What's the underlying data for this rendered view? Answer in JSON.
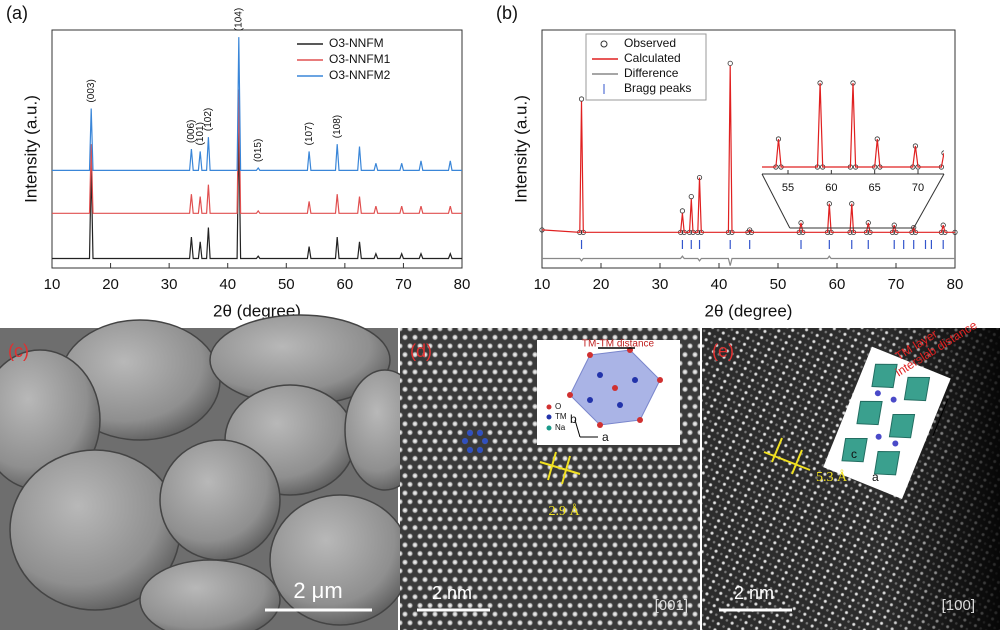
{
  "chart_data": [
    {
      "type": "line",
      "label": "(a)",
      "xlabel": "2θ (degree)",
      "ylabel": "Intensity (a.u.)",
      "xlim": [
        10,
        80
      ],
      "xticks": [
        10,
        20,
        30,
        40,
        50,
        60,
        70,
        80
      ],
      "ylim": [
        0,
        100
      ],
      "legend": "upper right",
      "x": [
        10,
        16.4,
        16.7,
        17.0,
        33.5,
        33.8,
        34.1,
        35.0,
        35.3,
        35.6,
        36.4,
        36.7,
        37.0,
        41.6,
        41.9,
        42.2,
        44.9,
        45.2,
        45.5,
        53.6,
        53.9,
        54.2,
        58.4,
        58.7,
        59.0,
        62.2,
        62.5,
        62.8,
        65.0,
        65.3,
        65.6,
        69.4,
        69.7,
        70.0,
        72.7,
        73.0,
        73.3,
        77.7,
        78.0,
        78.3,
        80
      ],
      "series": [
        {
          "name": "O3-NNFM",
          "color": "#222222",
          "values": [
            4,
            4,
            43,
            4,
            4,
            13,
            4,
            4,
            11,
            4,
            4,
            17,
            4,
            4,
            58,
            4,
            4,
            5,
            4,
            4,
            9,
            4,
            4,
            13,
            4,
            4,
            11,
            4,
            4,
            6,
            4,
            4,
            6,
            4,
            4,
            6,
            4,
            4,
            6,
            4,
            4
          ]
        },
        {
          "name": "O3-NNFM1",
          "color": "#e05050",
          "values": [
            23,
            23,
            52,
            23,
            23,
            31,
            23,
            23,
            30,
            23,
            23,
            35,
            23,
            23,
            75,
            23,
            23,
            24,
            23,
            23,
            28,
            23,
            23,
            31,
            23,
            23,
            30,
            23,
            23,
            26,
            23,
            23,
            26,
            23,
            23,
            26,
            23,
            23,
            26,
            23,
            23
          ]
        },
        {
          "name": "O3-NNFM2",
          "color": "#3a86d8",
          "values": [
            41,
            41,
            67,
            41,
            41,
            50,
            41,
            41,
            49,
            41,
            41,
            55,
            41,
            41,
            97,
            41,
            41,
            42,
            41,
            41,
            49,
            41,
            41,
            52,
            41,
            41,
            51,
            41,
            41,
            44,
            41,
            41,
            44,
            41,
            41,
            45,
            41,
            41,
            45,
            41,
            41
          ]
        }
      ],
      "annotations": [
        {
          "label": "(003)",
          "x": 16.7
        },
        {
          "label": "(006)",
          "x": 33.8
        },
        {
          "label": "(101)",
          "x": 35.3
        },
        {
          "label": "(102)",
          "x": 36.7
        },
        {
          "label": "(104)",
          "x": 41.9
        },
        {
          "label": "(015)",
          "x": 45.2
        },
        {
          "label": "(107)",
          "x": 53.9
        },
        {
          "label": "(108)",
          "x": 58.7
        }
      ]
    },
    {
      "type": "line",
      "label": "(b)",
      "xlabel": "2θ (degree)",
      "ylabel": "Intensity (a.u.)",
      "xlim": [
        10,
        80
      ],
      "xticks": [
        10,
        20,
        30,
        40,
        50,
        60,
        70,
        80
      ],
      "ylim": [
        0,
        100
      ],
      "legend": "upper center",
      "x": [
        10,
        16.4,
        16.7,
        17.0,
        33.5,
        33.8,
        34.1,
        35.0,
        35.3,
        35.6,
        36.4,
        36.7,
        37.0,
        41.6,
        41.9,
        42.2,
        44.9,
        45.2,
        45.5,
        53.6,
        53.9,
        54.2,
        58.4,
        58.7,
        59.0,
        62.2,
        62.5,
        62.8,
        65.0,
        65.3,
        65.6,
        69.4,
        69.7,
        70.0,
        72.7,
        73.0,
        73.3,
        77.7,
        78.0,
        78.3,
        80
      ],
      "series": [
        {
          "name": "Observed",
          "color": "#333333",
          "marker": "circle",
          "values": [
            16,
            15,
            71,
            15,
            15,
            24,
            15,
            15,
            30,
            15,
            15,
            38,
            15,
            15,
            86,
            15,
            15,
            16,
            15,
            15,
            19,
            15,
            15,
            27,
            15,
            15,
            27,
            15,
            15,
            19,
            15,
            15,
            18,
            15,
            15,
            17,
            15,
            15,
            18,
            15,
            15
          ]
        },
        {
          "name": "Calculated",
          "color": "#e02020",
          "values": [
            16,
            15,
            70,
            15,
            15,
            23,
            15,
            15,
            29,
            15,
            15,
            38,
            15,
            15,
            85,
            15,
            15,
            16,
            15,
            15,
            19,
            15,
            15,
            27,
            15,
            15,
            27,
            15,
            15,
            19,
            15,
            15,
            18,
            15,
            15,
            17,
            15,
            15,
            18,
            15,
            15
          ]
        },
        {
          "name": "Difference",
          "color": "#888888",
          "values": [
            4,
            4,
            3,
            4,
            4,
            5,
            4,
            4,
            4,
            4,
            4,
            3,
            4,
            4,
            1,
            4,
            4,
            4,
            4,
            4,
            4,
            4,
            4,
            5,
            4,
            4,
            4,
            4,
            4,
            4,
            4,
            4,
            4,
            4,
            4,
            4,
            4,
            4,
            4,
            4,
            4
          ]
        }
      ],
      "bragg_peaks": {
        "name": "Bragg peaks",
        "color": "#3355cc",
        "x": [
          16.7,
          33.8,
          35.3,
          36.7,
          41.9,
          45.2,
          53.9,
          58.7,
          62.5,
          65.3,
          69.7,
          71.3,
          73.0,
          75.0,
          76.0,
          78.0
        ]
      },
      "inset": {
        "xlim": [
          52,
          73
        ],
        "xticks": [
          55,
          60,
          65,
          70
        ],
        "ylim": [
          14,
          30
        ]
      }
    }
  ],
  "panels": [
    {
      "label": "(c)",
      "scale_bar": "2 μm"
    },
    {
      "label": "(d)",
      "distance_label": "TM-TM distance",
      "legend": [
        "O",
        "TM",
        "Na"
      ],
      "axes": [
        "b",
        "a"
      ],
      "spacing": "2.9 Å",
      "scale_bar": "2 nm",
      "zone_axis": "[001]"
    },
    {
      "label": "(e)",
      "distance_label": [
        "TM layer",
        "interslab distance"
      ],
      "axes": [
        "c",
        "a"
      ],
      "spacing": "5.3 Å",
      "scale_bar": "2 nm",
      "zone_axis": "[100]"
    }
  ]
}
